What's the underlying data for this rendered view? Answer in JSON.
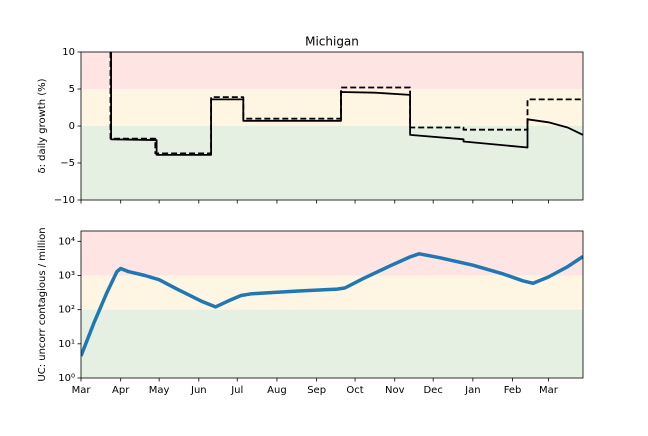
{
  "chart_data": [
    {
      "type": "line",
      "title": "Michigan",
      "ylabel": "δ: daily growth (%)",
      "xlim": [
        0,
        392
      ],
      "ylim": [
        -10,
        10
      ],
      "xticks": [
        0,
        31,
        61,
        92,
        122,
        153,
        184,
        214,
        245,
        275,
        306,
        337,
        365
      ],
      "yticks": [
        {
          "value": -10,
          "label": "−10"
        },
        {
          "value": -5,
          "label": "−5"
        },
        0,
        5,
        10
      ],
      "bands": [
        {
          "from": 5,
          "to": 10,
          "color": "#ffe4e4"
        },
        {
          "from": 0,
          "to": 5,
          "color": "#fff5e3"
        },
        {
          "from": -10,
          "to": 0,
          "color": "#e5f0e3"
        }
      ],
      "series": [
        {
          "color": "#000000",
          "dash": false,
          "x": [
            23.5,
            23.5,
            59,
            59,
            101.6,
            101.6,
            126.7,
            126.7,
            203,
            203,
            230,
            257,
            257,
            298.7,
            298.7,
            348.7,
            348.7,
            365,
            380,
            392
          ],
          "values": [
            10,
            -1.8,
            -1.9,
            -3.9,
            -3.9,
            3.6,
            3.6,
            0.7,
            0.7,
            4.6,
            4.5,
            4.2,
            -1.2,
            -1.8,
            -2.1,
            -2.9,
            0.9,
            0.5,
            -0.2,
            -1.2
          ]
        },
        {
          "color": "#000000",
          "dash": true,
          "x": [
            23,
            23,
            58,
            58,
            101.6,
            101.6,
            126.7,
            126.7,
            203,
            203,
            257,
            257,
            298.7,
            298.7,
            348.7,
            348.7,
            392
          ],
          "values": [
            10,
            -1.7,
            -1.7,
            -3.7,
            -3.7,
            3.9,
            3.9,
            1.0,
            1.0,
            5.2,
            5.2,
            -0.2,
            -0.2,
            -0.5,
            -0.5,
            3.6,
            3.6
          ]
        }
      ]
    },
    {
      "type": "line",
      "ylabel": "UC: uncorr contagious / million",
      "log_y": true,
      "xlim": [
        0,
        392
      ],
      "ylim": [
        1,
        20000
      ],
      "xticks": [
        {
          "value": 0,
          "label": "Mar"
        },
        {
          "value": 31,
          "label": "Apr"
        },
        {
          "value": 61,
          "label": "May"
        },
        {
          "value": 92,
          "label": "Jun"
        },
        {
          "value": 122,
          "label": "Jul"
        },
        {
          "value": 153,
          "label": "Aug"
        },
        {
          "value": 184,
          "label": "Sep"
        },
        {
          "value": 214,
          "label": "Oct"
        },
        {
          "value": 245,
          "label": "Nov"
        },
        {
          "value": 275,
          "label": "Dec"
        },
        {
          "value": 306,
          "label": "Jan"
        },
        {
          "value": 337,
          "label": "Feb"
        },
        {
          "value": 365,
          "label": "Mar"
        }
      ],
      "yticks": [
        {
          "value": 1,
          "label": "10⁰"
        },
        {
          "value": 10,
          "label": "10¹"
        },
        {
          "value": 100,
          "label": "10²"
        },
        {
          "value": 1000,
          "label": "10³"
        },
        {
          "value": 10000,
          "label": "10⁴"
        }
      ],
      "bands": [
        {
          "from": 1000,
          "to": 20000,
          "color": "#ffe4e4"
        },
        {
          "from": 100,
          "to": 1000,
          "color": "#fff5e3"
        },
        {
          "from": 1,
          "to": 100,
          "color": "#e5f0e3"
        }
      ],
      "series": [
        {
          "color": "#1f77b4",
          "dash": false,
          "x": [
            0,
            10,
            20,
            28,
            31,
            37,
            50,
            61,
            75,
            95,
            105,
            115,
            125,
            133,
            170,
            200,
            206,
            220,
            240,
            257,
            264,
            280,
            306,
            330,
            345,
            353,
            365,
            380,
            392
          ],
          "values": [
            4.4,
            40,
            300,
            1300,
            1600,
            1300,
            1000,
            750,
            400,
            170,
            120,
            180,
            260,
            290,
            350,
            400,
            430,
            800,
            1800,
            3500,
            4300,
            3300,
            2000,
            1100,
            700,
            590,
            900,
            1800,
            3600
          ]
        }
      ]
    }
  ]
}
